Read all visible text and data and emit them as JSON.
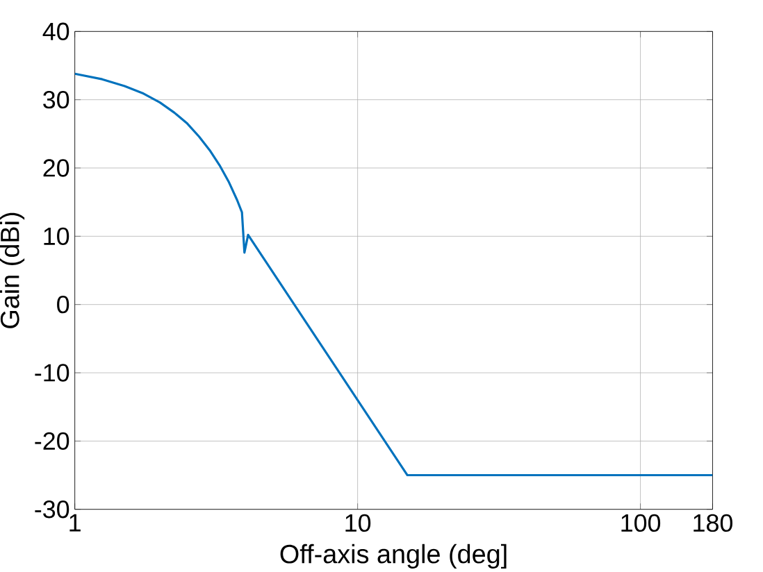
{
  "chart_data": {
    "type": "line",
    "xlabel": "Off-axis angle (deg]",
    "ylabel": "Gain (dBi)",
    "log": "x",
    "grid": true,
    "color": "#0072bd",
    "x": [
      1,
      1.25,
      1.5,
      1.75,
      2,
      2.25,
      2.5,
      2.75,
      3,
      3.25,
      3.5,
      3.75,
      3.9,
      3.98,
      4.1,
      15,
      180
    ],
    "values": [
      33.8,
      33.0,
      32.0,
      30.9,
      29.6,
      28.1,
      26.5,
      24.6,
      22.6,
      20.4,
      18.0,
      15.3,
      13.5,
      7.6,
      10.2,
      -25,
      -25
    ],
    "xlim": [
      1,
      180
    ],
    "xticks": [
      1,
      10,
      100,
      180
    ],
    "ylim": [
      -30,
      40
    ],
    "yticks": [
      -30,
      -20,
      -10,
      0,
      10,
      20,
      30,
      40
    ]
  }
}
